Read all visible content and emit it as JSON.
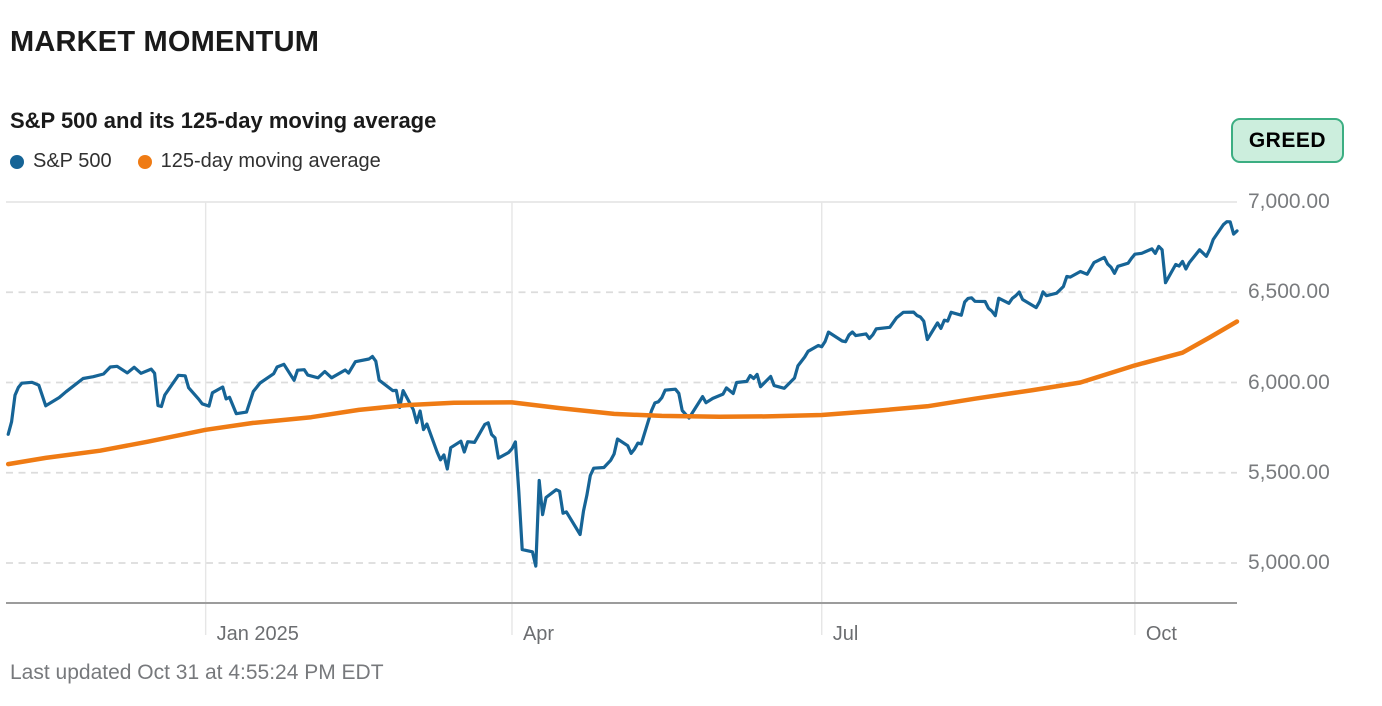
{
  "header": {
    "title": "MARKET MOMENTUM",
    "subtitle": "S&P 500 and its 125-day moving average"
  },
  "legend": [
    {
      "label": "S&P 500",
      "color": "#166496"
    },
    {
      "label": "125-day moving average",
      "color": "#EF7B14"
    }
  ],
  "badge": {
    "label": "GREED",
    "bg": "#CCEEDD",
    "border": "#3CAE82",
    "text_color": "#000000"
  },
  "footer": {
    "last_updated": "Last updated Oct 31 at 4:55:24 PM EDT"
  },
  "chart_data": {
    "type": "line",
    "title": "S&P 500 and its 125-day moving average",
    "xlabel": "",
    "ylabel": "",
    "x_range": [
      "2024-11-01",
      "2025-10-31"
    ],
    "ylim": [
      4770,
      7000
    ],
    "grid": "horizontal-dashed",
    "legend_position": "top-left",
    "y_ticks": [
      7000,
      6500,
      6000,
      5500,
      5000
    ],
    "y_tick_labels": [
      "7,000.00",
      "6,500.00",
      "6,000.00",
      "5,500.00",
      "5,000.00"
    ],
    "x_ticks": [
      "2025-01-01",
      "2025-04-01",
      "2025-07-01",
      "2025-10-01"
    ],
    "x_tick_labels": [
      "Jan 2025",
      "Apr",
      "Jul",
      "Oct"
    ],
    "colors": {
      "grid_dashed": "#dcdcdc",
      "grid_solid": "#e2e2e2",
      "grid_vertical": "#e6e6e6",
      "axis": "#9c9c9c"
    },
    "series": [
      {
        "name": "S&P 500",
        "color": "#166496",
        "width": 3.2,
        "points": [
          [
            "2024-11-04",
            5713
          ],
          [
            "2024-11-05",
            5783
          ],
          [
            "2024-11-06",
            5929
          ],
          [
            "2024-11-07",
            5973
          ],
          [
            "2024-11-08",
            5996
          ],
          [
            "2024-11-11",
            6001
          ],
          [
            "2024-11-13",
            5985
          ],
          [
            "2024-11-15",
            5871
          ],
          [
            "2024-11-19",
            5917
          ],
          [
            "2024-11-21",
            5949
          ],
          [
            "2024-11-26",
            6022
          ],
          [
            "2024-11-29",
            6032
          ],
          [
            "2024-12-02",
            6047
          ],
          [
            "2024-12-04",
            6086
          ],
          [
            "2024-12-06",
            6090
          ],
          [
            "2024-12-09",
            6053
          ],
          [
            "2024-12-11",
            6084
          ],
          [
            "2024-12-13",
            6051
          ],
          [
            "2024-12-16",
            6074
          ],
          [
            "2024-12-17",
            6051
          ],
          [
            "2024-12-18",
            5872
          ],
          [
            "2024-12-19",
            5867
          ],
          [
            "2024-12-20",
            5931
          ],
          [
            "2024-12-24",
            6040
          ],
          [
            "2024-12-26",
            6037
          ],
          [
            "2024-12-27",
            5971
          ],
          [
            "2024-12-30",
            5907
          ],
          [
            "2024-12-31",
            5882
          ],
          [
            "2025-01-02",
            5869
          ],
          [
            "2025-01-03",
            5943
          ],
          [
            "2025-01-06",
            5975
          ],
          [
            "2025-01-07",
            5909
          ],
          [
            "2025-01-08",
            5918
          ],
          [
            "2025-01-10",
            5827
          ],
          [
            "2025-01-13",
            5836
          ],
          [
            "2025-01-15",
            5950
          ],
          [
            "2025-01-17",
            5997
          ],
          [
            "2025-01-21",
            6049
          ],
          [
            "2025-01-22",
            6086
          ],
          [
            "2025-01-24",
            6101
          ],
          [
            "2025-01-27",
            6012
          ],
          [
            "2025-01-28",
            6068
          ],
          [
            "2025-01-30",
            6071
          ],
          [
            "2025-01-31",
            6041
          ],
          [
            "2025-02-03",
            6026
          ],
          [
            "2025-02-05",
            6061
          ],
          [
            "2025-02-07",
            6026
          ],
          [
            "2025-02-11",
            6069
          ],
          [
            "2025-02-12",
            6052
          ],
          [
            "2025-02-14",
            6115
          ],
          [
            "2025-02-18",
            6130
          ],
          [
            "2025-02-19",
            6144
          ],
          [
            "2025-02-20",
            6118
          ],
          [
            "2025-02-21",
            6013
          ],
          [
            "2025-02-25",
            5955
          ],
          [
            "2025-02-26",
            5956
          ],
          [
            "2025-02-27",
            5862
          ],
          [
            "2025-02-28",
            5955
          ],
          [
            "2025-03-03",
            5850
          ],
          [
            "2025-03-04",
            5778
          ],
          [
            "2025-03-05",
            5842
          ],
          [
            "2025-03-06",
            5739
          ],
          [
            "2025-03-07",
            5770
          ],
          [
            "2025-03-10",
            5615
          ],
          [
            "2025-03-11",
            5572
          ],
          [
            "2025-03-12",
            5599
          ],
          [
            "2025-03-13",
            5521
          ],
          [
            "2025-03-14",
            5639
          ],
          [
            "2025-03-17",
            5675
          ],
          [
            "2025-03-18",
            5615
          ],
          [
            "2025-03-19",
            5672
          ],
          [
            "2025-03-21",
            5668
          ],
          [
            "2025-03-24",
            5768
          ],
          [
            "2025-03-25",
            5777
          ],
          [
            "2025-03-26",
            5712
          ],
          [
            "2025-03-27",
            5693
          ],
          [
            "2025-03-28",
            5581
          ],
          [
            "2025-03-31",
            5612
          ],
          [
            "2025-04-01",
            5633
          ],
          [
            "2025-04-02",
            5671
          ],
          [
            "2025-04-03",
            5396
          ],
          [
            "2025-04-04",
            5074
          ],
          [
            "2025-04-07",
            5062
          ],
          [
            "2025-04-08",
            4983
          ],
          [
            "2025-04-09",
            5457
          ],
          [
            "2025-04-10",
            5268
          ],
          [
            "2025-04-11",
            5363
          ],
          [
            "2025-04-14",
            5406
          ],
          [
            "2025-04-15",
            5397
          ],
          [
            "2025-04-16",
            5276
          ],
          [
            "2025-04-17",
            5283
          ],
          [
            "2025-04-21",
            5158
          ],
          [
            "2025-04-22",
            5288
          ],
          [
            "2025-04-23",
            5376
          ],
          [
            "2025-04-24",
            5485
          ],
          [
            "2025-04-25",
            5525
          ],
          [
            "2025-04-28",
            5529
          ],
          [
            "2025-04-30",
            5569
          ],
          [
            "2025-05-01",
            5604
          ],
          [
            "2025-05-02",
            5687
          ],
          [
            "2025-05-05",
            5650
          ],
          [
            "2025-05-06",
            5607
          ],
          [
            "2025-05-07",
            5631
          ],
          [
            "2025-05-08",
            5664
          ],
          [
            "2025-05-09",
            5660
          ],
          [
            "2025-05-12",
            5844
          ],
          [
            "2025-05-13",
            5887
          ],
          [
            "2025-05-14",
            5893
          ],
          [
            "2025-05-15",
            5916
          ],
          [
            "2025-05-16",
            5958
          ],
          [
            "2025-05-19",
            5963
          ],
          [
            "2025-05-20",
            5940
          ],
          [
            "2025-05-21",
            5845
          ],
          [
            "2025-05-23",
            5803
          ],
          [
            "2025-05-27",
            5922
          ],
          [
            "2025-05-28",
            5888
          ],
          [
            "2025-05-30",
            5912
          ],
          [
            "2025-06-02",
            5936
          ],
          [
            "2025-06-03",
            5970
          ],
          [
            "2025-06-05",
            5939
          ],
          [
            "2025-06-06",
            6000
          ],
          [
            "2025-06-09",
            6006
          ],
          [
            "2025-06-10",
            6039
          ],
          [
            "2025-06-11",
            6022
          ],
          [
            "2025-06-12",
            6045
          ],
          [
            "2025-06-13",
            5977
          ],
          [
            "2025-06-16",
            6033
          ],
          [
            "2025-06-17",
            5983
          ],
          [
            "2025-06-20",
            5968
          ],
          [
            "2025-06-23",
            6025
          ],
          [
            "2025-06-24",
            6092
          ],
          [
            "2025-06-26",
            6141
          ],
          [
            "2025-06-27",
            6173
          ],
          [
            "2025-06-30",
            6205
          ],
          [
            "2025-07-01",
            6198
          ],
          [
            "2025-07-02",
            6227
          ],
          [
            "2025-07-03",
            6279
          ],
          [
            "2025-07-07",
            6230
          ],
          [
            "2025-07-08",
            6226
          ],
          [
            "2025-07-09",
            6263
          ],
          [
            "2025-07-10",
            6280
          ],
          [
            "2025-07-11",
            6260
          ],
          [
            "2025-07-14",
            6269
          ],
          [
            "2025-07-15",
            6244
          ],
          [
            "2025-07-16",
            6264
          ],
          [
            "2025-07-17",
            6297
          ],
          [
            "2025-07-21",
            6306
          ],
          [
            "2025-07-23",
            6359
          ],
          [
            "2025-07-25",
            6389
          ],
          [
            "2025-07-28",
            6390
          ],
          [
            "2025-07-29",
            6371
          ],
          [
            "2025-07-30",
            6363
          ],
          [
            "2025-07-31",
            6339
          ],
          [
            "2025-08-01",
            6238
          ],
          [
            "2025-08-04",
            6330
          ],
          [
            "2025-08-05",
            6300
          ],
          [
            "2025-08-06",
            6345
          ],
          [
            "2025-08-07",
            6340
          ],
          [
            "2025-08-08",
            6389
          ],
          [
            "2025-08-11",
            6373
          ],
          [
            "2025-08-12",
            6446
          ],
          [
            "2025-08-13",
            6466
          ],
          [
            "2025-08-14",
            6469
          ],
          [
            "2025-08-15",
            6450
          ],
          [
            "2025-08-18",
            6449
          ],
          [
            "2025-08-19",
            6411
          ],
          [
            "2025-08-20",
            6395
          ],
          [
            "2025-08-21",
            6370
          ],
          [
            "2025-08-22",
            6467
          ],
          [
            "2025-08-25",
            6439
          ],
          [
            "2025-08-26",
            6466
          ],
          [
            "2025-08-27",
            6481
          ],
          [
            "2025-08-28",
            6501
          ],
          [
            "2025-08-29",
            6460
          ],
          [
            "2025-09-02",
            6415
          ],
          [
            "2025-09-03",
            6448
          ],
          [
            "2025-09-04",
            6502
          ],
          [
            "2025-09-05",
            6481
          ],
          [
            "2025-09-08",
            6495
          ],
          [
            "2025-09-09",
            6513
          ],
          [
            "2025-09-10",
            6532
          ],
          [
            "2025-09-11",
            6587
          ],
          [
            "2025-09-12",
            6584
          ],
          [
            "2025-09-15",
            6615
          ],
          [
            "2025-09-16",
            6607
          ],
          [
            "2025-09-17",
            6600
          ],
          [
            "2025-09-18",
            6632
          ],
          [
            "2025-09-19",
            6664
          ],
          [
            "2025-09-22",
            6693
          ],
          [
            "2025-09-23",
            6656
          ],
          [
            "2025-09-24",
            6638
          ],
          [
            "2025-09-25",
            6605
          ],
          [
            "2025-09-26",
            6644
          ],
          [
            "2025-09-29",
            6661
          ],
          [
            "2025-09-30",
            6688
          ],
          [
            "2025-10-01",
            6711
          ],
          [
            "2025-10-03",
            6716
          ],
          [
            "2025-10-06",
            6740
          ],
          [
            "2025-10-07",
            6715
          ],
          [
            "2025-10-08",
            6754
          ],
          [
            "2025-10-09",
            6735
          ],
          [
            "2025-10-10",
            6553
          ],
          [
            "2025-10-13",
            6654
          ],
          [
            "2025-10-14",
            6645
          ],
          [
            "2025-10-15",
            6671
          ],
          [
            "2025-10-16",
            6629
          ],
          [
            "2025-10-17",
            6664
          ],
          [
            "2025-10-20",
            6735
          ],
          [
            "2025-10-22",
            6699
          ],
          [
            "2025-10-23",
            6738
          ],
          [
            "2025-10-24",
            6792
          ],
          [
            "2025-10-27",
            6875
          ],
          [
            "2025-10-28",
            6891
          ],
          [
            "2025-10-29",
            6890
          ],
          [
            "2025-10-30",
            6822
          ],
          [
            "2025-10-31",
            6840
          ]
        ]
      },
      {
        "name": "125-day moving average",
        "color": "#EF7B14",
        "width": 4.5,
        "points": [
          [
            "2024-11-04",
            5548
          ],
          [
            "2024-11-15",
            5582
          ],
          [
            "2024-12-01",
            5622
          ],
          [
            "2024-12-15",
            5672
          ],
          [
            "2025-01-01",
            5738
          ],
          [
            "2025-01-15",
            5776
          ],
          [
            "2025-02-01",
            5808
          ],
          [
            "2025-02-15",
            5848
          ],
          [
            "2025-03-01",
            5875
          ],
          [
            "2025-03-15",
            5888
          ],
          [
            "2025-04-01",
            5890
          ],
          [
            "2025-04-15",
            5858
          ],
          [
            "2025-05-01",
            5826
          ],
          [
            "2025-05-15",
            5815
          ],
          [
            "2025-06-01",
            5810
          ],
          [
            "2025-06-15",
            5812
          ],
          [
            "2025-07-01",
            5820
          ],
          [
            "2025-07-15",
            5840
          ],
          [
            "2025-08-01",
            5868
          ],
          [
            "2025-08-15",
            5910
          ],
          [
            "2025-09-01",
            5958
          ],
          [
            "2025-09-15",
            6000
          ],
          [
            "2025-10-01",
            6095
          ],
          [
            "2025-10-15",
            6165
          ],
          [
            "2025-10-23",
            6250
          ],
          [
            "2025-10-31",
            6338
          ]
        ]
      }
    ]
  }
}
